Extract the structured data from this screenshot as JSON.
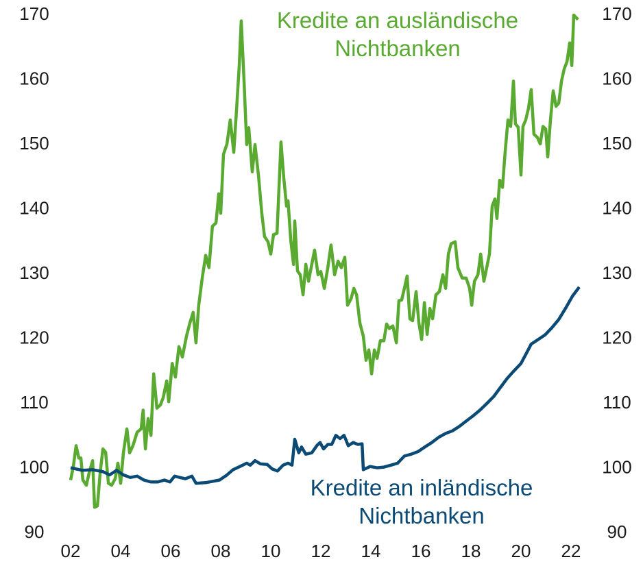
{
  "chart_data": {
    "type": "line",
    "xlim": [
      2002,
      2022.33
    ],
    "xticks": [
      {
        "value": 2002,
        "label": "02"
      },
      {
        "value": 2004,
        "label": "04"
      },
      {
        "value": 2006,
        "label": "06"
      },
      {
        "value": 2008,
        "label": "08"
      },
      {
        "value": 2010,
        "label": "10"
      },
      {
        "value": 2012,
        "label": "12"
      },
      {
        "value": 2014,
        "label": "14"
      },
      {
        "value": 2016,
        "label": "16"
      },
      {
        "value": 2018,
        "label": "18"
      },
      {
        "value": 2020,
        "label": "20"
      },
      {
        "value": 2022,
        "label": "22"
      }
    ],
    "ylim": [
      90,
      170
    ],
    "yticks": [
      90,
      100,
      110,
      120,
      130,
      140,
      150,
      160,
      170
    ],
    "y2lim": [
      90,
      170
    ],
    "y2ticks": [
      90,
      100,
      110,
      120,
      130,
      140,
      150,
      160,
      170
    ],
    "grid": false,
    "series": [
      {
        "name": "Kredite an ausländische Nichtbanken",
        "color": "#5aaa32",
        "x": [
          2002.0,
          2002.11,
          2002.22,
          2002.33,
          2002.41,
          2002.49,
          2002.63,
          2002.74,
          2002.88,
          2002.96,
          2003.07,
          2003.18,
          2003.29,
          2003.4,
          2003.51,
          2003.64,
          2003.78,
          2003.89,
          2004.0,
          2004.11,
          2004.25,
          2004.36,
          2004.49,
          2004.66,
          2004.82,
          2004.9,
          2004.99,
          2005.1,
          2005.21,
          2005.32,
          2005.45,
          2005.59,
          2005.7,
          2005.84,
          2005.92,
          2006.06,
          2006.19,
          2006.33,
          2006.47,
          2006.63,
          2006.77,
          2006.9,
          2007.01,
          2007.12,
          2007.26,
          2007.4,
          2007.53,
          2007.67,
          2007.81,
          2007.92,
          2008.0,
          2008.11,
          2008.25,
          2008.38,
          2008.52,
          2008.63,
          2008.74,
          2008.82,
          2008.93,
          2009.04,
          2009.12,
          2009.26,
          2009.37,
          2009.51,
          2009.64,
          2009.75,
          2009.89,
          2010.0,
          2010.11,
          2010.25,
          2010.41,
          2010.52,
          2010.63,
          2010.69,
          2010.8,
          2010.91,
          2010.96,
          2011.07,
          2011.18,
          2011.29,
          2011.4,
          2011.51,
          2011.64,
          2011.75,
          2011.89,
          2012.0,
          2012.14,
          2012.28,
          2012.41,
          2012.55,
          2012.69,
          2012.82,
          2012.96,
          2013.07,
          2013.21,
          2013.32,
          2013.43,
          2013.56,
          2013.7,
          2013.81,
          2013.92,
          2014.03,
          2014.14,
          2014.25,
          2014.38,
          2014.52,
          2014.63,
          2014.74,
          2014.88,
          2015.02,
          2015.12,
          2015.23,
          2015.34,
          2015.45,
          2015.56,
          2015.67,
          2015.81,
          2015.92,
          2016.03,
          2016.14,
          2016.25,
          2016.36,
          2016.47,
          2016.6,
          2016.74,
          2016.88,
          2016.99,
          2017.1,
          2017.21,
          2017.37,
          2017.48,
          2017.65,
          2017.81,
          2017.95,
          2018.03,
          2018.14,
          2018.28,
          2018.39,
          2018.52,
          2018.63,
          2018.74,
          2018.85,
          2018.96,
          2019.04,
          2019.15,
          2019.26,
          2019.37,
          2019.48,
          2019.59,
          2019.7,
          2019.78,
          2019.89,
          2020.0,
          2020.08,
          2020.19,
          2020.3,
          2020.41,
          2020.52,
          2020.66,
          2020.77,
          2020.88,
          2020.99,
          2021.07,
          2021.18,
          2021.29,
          2021.4,
          2021.51,
          2021.62,
          2021.73,
          2021.84,
          2021.95,
          2022.03,
          2022.11,
          2022.28
        ],
        "values": [
          98.2,
          100.3,
          103.5,
          101.6,
          101.6,
          98.2,
          97.4,
          99.3,
          101.2,
          94.0,
          94.2,
          99.3,
          103.0,
          102.5,
          97.7,
          97.4,
          98.4,
          100.8,
          97.7,
          102.4,
          106.1,
          102.4,
          103.5,
          105.6,
          106.1,
          109.0,
          103.0,
          107.7,
          105.1,
          114.6,
          109.3,
          109.8,
          110.9,
          113.5,
          110.3,
          116.2,
          114.1,
          118.8,
          117.2,
          120.4,
          122.5,
          124.1,
          119.4,
          125.2,
          129.4,
          132.9,
          131.0,
          137.4,
          137.9,
          142.4,
          139.4,
          148.5,
          150.1,
          153.8,
          148.8,
          155.3,
          162.2,
          169.1,
          160.1,
          150.0,
          152.6,
          145.8,
          150.0,
          145.2,
          139.5,
          135.8,
          135.0,
          133.1,
          136.1,
          136.3,
          150.4,
          144.8,
          140.5,
          141.3,
          135.2,
          131.5,
          138.2,
          130.5,
          129.9,
          126.8,
          131.5,
          128.9,
          131.5,
          133.7,
          129.9,
          130.4,
          127.8,
          131.0,
          134.5,
          129.9,
          132.0,
          131.0,
          132.6,
          125.2,
          126.2,
          127.8,
          126.8,
          122.5,
          120.4,
          116.7,
          118.3,
          114.6,
          118.3,
          117.0,
          119.7,
          119.7,
          122.3,
          121.6,
          122.0,
          119.4,
          125.9,
          126.0,
          127.8,
          129.7,
          123.1,
          122.8,
          127.3,
          122.5,
          119.9,
          125.6,
          120.7,
          124.7,
          123.1,
          126.8,
          127.3,
          129.9,
          127.8,
          133.1,
          134.7,
          135.0,
          131.0,
          129.4,
          129.4,
          127.8,
          125.2,
          128.9,
          129.9,
          133.1,
          128.9,
          131.0,
          133.1,
          140.5,
          141.6,
          138.6,
          144.5,
          143.4,
          149.0,
          153.8,
          152.8,
          159.8,
          153.2,
          152.7,
          145.3,
          152.8,
          153.8,
          155.6,
          158.5,
          151.6,
          151.1,
          150.1,
          152.8,
          152.4,
          148.1,
          153.8,
          158.3,
          155.9,
          156.4,
          159.8,
          161.7,
          162.8,
          165.7,
          162.2,
          170.0,
          169.3
        ]
      },
      {
        "name": "Kredite an inländische Nichtbanken",
        "color": "#0b4a75",
        "x": [
          2002.0,
          2002.47,
          2002.88,
          2003.29,
          2003.56,
          2003.84,
          2004.11,
          2004.38,
          2004.66,
          2004.93,
          2005.21,
          2005.48,
          2005.75,
          2005.97,
          2006.16,
          2006.36,
          2006.58,
          2006.85,
          2007.01,
          2007.4,
          2007.67,
          2007.95,
          2008.22,
          2008.49,
          2008.77,
          2009.04,
          2009.18,
          2009.37,
          2009.59,
          2009.86,
          2010.06,
          2010.27,
          2010.49,
          2010.69,
          2010.85,
          2010.96,
          2011.12,
          2011.23,
          2011.4,
          2011.64,
          2011.84,
          2011.97,
          2012.11,
          2012.28,
          2012.44,
          2012.6,
          2012.77,
          2012.93,
          2013.1,
          2013.29,
          2013.48,
          2013.65,
          2013.7,
          2013.97,
          2014.25,
          2014.52,
          2014.8,
          2015.07,
          2015.34,
          2015.62,
          2015.89,
          2016.16,
          2016.44,
          2016.71,
          2016.99,
          2017.26,
          2017.54,
          2017.81,
          2018.08,
          2018.36,
          2018.63,
          2018.91,
          2019.18,
          2019.45,
          2019.73,
          2020.0,
          2020.22,
          2020.41,
          2020.69,
          2020.96,
          2021.23,
          2021.51,
          2021.78,
          2022.06,
          2022.33
        ],
        "values": [
          100.1,
          99.7,
          99.8,
          99.5,
          99.0,
          99.7,
          99.0,
          98.6,
          98.8,
          98.2,
          97.9,
          97.9,
          98.2,
          97.9,
          98.8,
          98.6,
          98.4,
          98.8,
          97.7,
          97.8,
          98.0,
          98.2,
          98.9,
          99.8,
          100.3,
          100.8,
          100.5,
          101.2,
          100.7,
          100.6,
          99.9,
          99.6,
          100.5,
          100.8,
          100.5,
          104.5,
          102.4,
          103.3,
          102.2,
          102.4,
          103.5,
          104.0,
          103.0,
          103.7,
          103.7,
          105.1,
          104.6,
          105.1,
          103.5,
          104.0,
          103.7,
          103.8,
          99.8,
          100.3,
          100.1,
          100.2,
          100.5,
          100.8,
          101.9,
          102.2,
          102.6,
          103.3,
          104.0,
          104.8,
          105.4,
          105.8,
          106.5,
          107.3,
          108.1,
          109.0,
          110.0,
          111.1,
          112.5,
          113.9,
          115.1,
          116.2,
          117.8,
          119.2,
          119.9,
          120.6,
          121.7,
          123.0,
          124.7,
          126.6,
          128.0
        ]
      }
    ]
  }
}
